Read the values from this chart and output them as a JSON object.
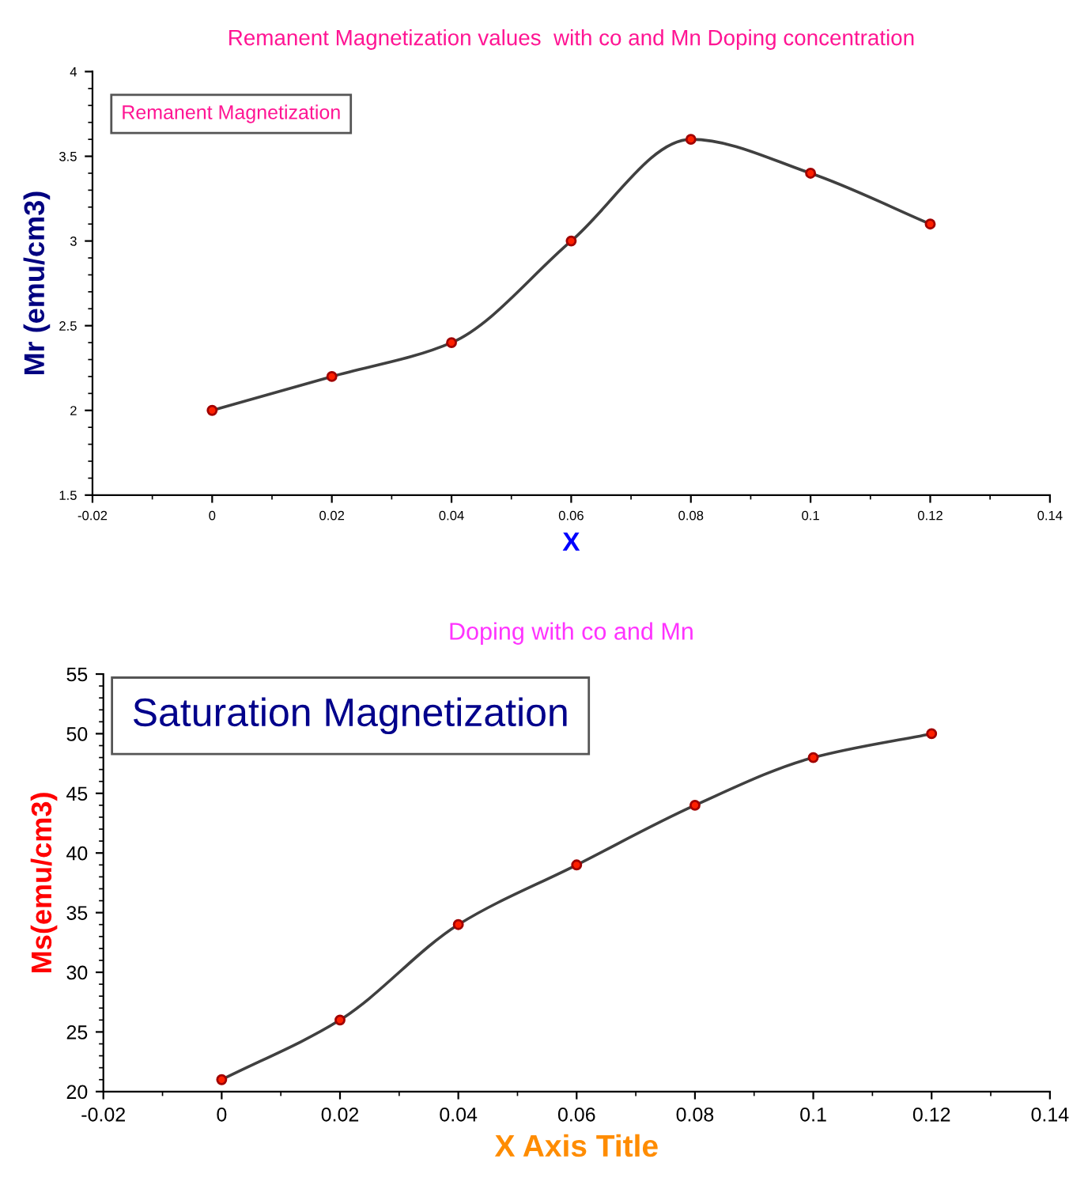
{
  "chart_data": [
    {
      "type": "line",
      "title": "Remanent Magnetization values  with co and Mn Doping concentration",
      "xlabel": "X",
      "ylabel": "Mr (emu/cm3)",
      "annotations": [
        "Remanent Magnetization",
        "Doping with co and Mn"
      ],
      "x": [
        0,
        0.02,
        0.04,
        0.06,
        0.08,
        0.1,
        0.12
      ],
      "series": [
        {
          "color": "#404040",
          "values": [
            2.0,
            2.2,
            2.4,
            3.0,
            3.6,
            3.4,
            3.1
          ]
        }
      ],
      "marker": "circle",
      "grid": false,
      "xlim": [
        -0.02,
        0.14
      ],
      "xticks": [
        -0.02,
        0,
        0.02,
        0.04,
        0.06,
        0.08,
        0.1,
        0.12,
        0.14
      ],
      "ylim": [
        1.5,
        4
      ],
      "yticks": [
        1.5,
        2,
        2.5,
        3,
        3.5,
        4
      ]
    },
    {
      "type": "line",
      "xlabel": "X Axis Title",
      "ylabel": "Ms(emu/cm3)",
      "annotations": [
        "Saturation Magnetization"
      ],
      "x": [
        0,
        0.02,
        0.04,
        0.06,
        0.08,
        0.1,
        0.12
      ],
      "series": [
        {
          "color": "#404040",
          "values": [
            21,
            26,
            34,
            39,
            44,
            48,
            50
          ]
        }
      ],
      "marker": "circle",
      "grid": false,
      "xlim": [
        -0.02,
        0.14
      ],
      "xticks": [
        -0.02,
        0,
        0.02,
        0.04,
        0.06,
        0.08,
        0.1,
        0.12,
        0.14
      ],
      "ylim": [
        20,
        55
      ],
      "yticks": [
        20,
        25,
        30,
        35,
        40,
        45,
        50,
        55
      ]
    }
  ]
}
